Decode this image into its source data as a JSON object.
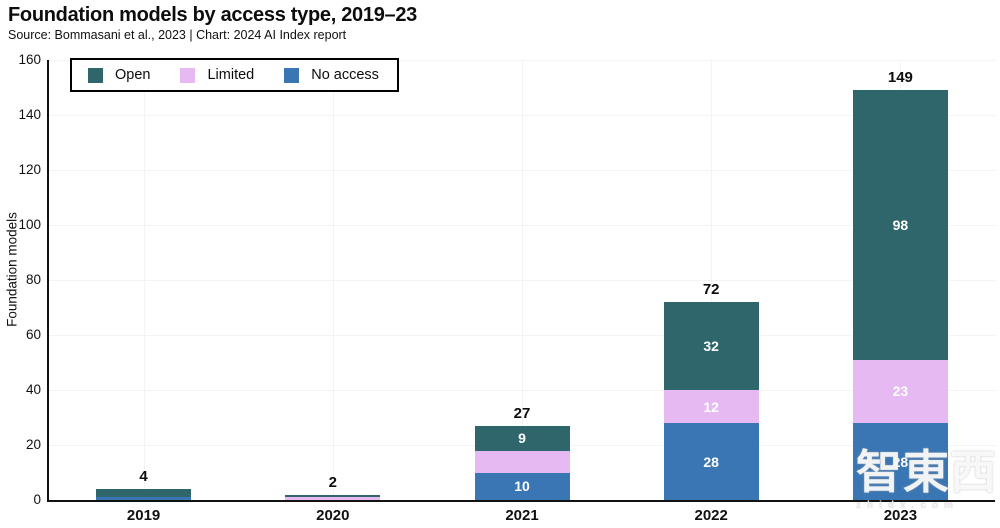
{
  "title": "Foundation models by access type, 2019–23",
  "source": "Source: Bommasani et al., 2023 | Chart: 2024 AI Index report",
  "watermark": {
    "logo": "智東西",
    "domain": "zhidx.com"
  },
  "chart_data": {
    "type": "bar",
    "stacked": true,
    "title": "Foundation models by access type, 2019–23",
    "xlabel": "",
    "ylabel": "Foundation models",
    "categories": [
      "2019",
      "2020",
      "2021",
      "2022",
      "2023"
    ],
    "series": [
      {
        "name": "Open",
        "color": "#2f666c",
        "values": [
          3,
          1,
          9,
          32,
          98
        ]
      },
      {
        "name": "Limited",
        "color": "#e6b9f2",
        "values": [
          0,
          1,
          8,
          12,
          23
        ]
      },
      {
        "name": "No access",
        "color": "#3a76b4",
        "values": [
          1,
          0,
          10,
          28,
          28
        ]
      }
    ],
    "totals": [
      4,
      2,
      27,
      72,
      149
    ],
    "ylim": [
      0,
      160
    ],
    "yticks": [
      0,
      20,
      40,
      60,
      80,
      100,
      120,
      140,
      160
    ],
    "grid": true,
    "legend_position": "top-left-inside",
    "segment_label_min": 9
  }
}
